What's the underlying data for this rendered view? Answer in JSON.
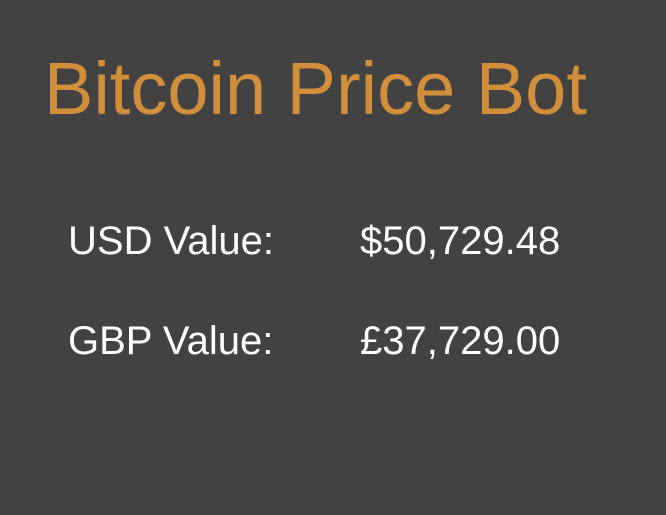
{
  "app": {
    "title": "Bitcoin Price Bot",
    "accent_color": "#d18f3c",
    "background_color": "#424242"
  },
  "prices": {
    "usd": {
      "label": "USD Value:",
      "value": "$50,729.48"
    },
    "gbp": {
      "label": "GBP Value:",
      "value": "£37,729.00"
    }
  }
}
